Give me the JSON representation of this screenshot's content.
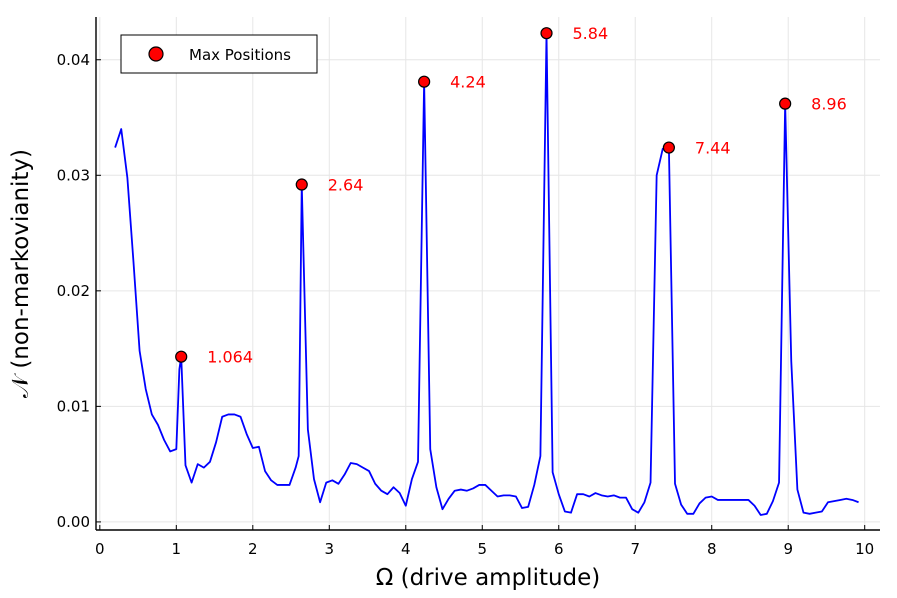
{
  "chart_data": {
    "type": "line",
    "title": "",
    "xlabel": "Ω (drive amplitude)",
    "ylabel": "𝒩 (non-markovianity)",
    "xlim": [
      -0.05,
      10.2
    ],
    "ylim": [
      -0.0007,
      0.0437
    ],
    "xticks": [
      0,
      1,
      2,
      3,
      4,
      5,
      6,
      7,
      8,
      9,
      10
    ],
    "xtick_labels": [
      "0",
      "1",
      "2",
      "3",
      "4",
      "5",
      "6",
      "7",
      "8",
      "9",
      "10"
    ],
    "yticks": [
      0,
      0.01,
      0.02,
      0.03,
      0.04
    ],
    "ytick_labels": [
      "0.00",
      "0.01",
      "0.02",
      "0.03",
      "0.04"
    ],
    "grid": true,
    "series": [
      {
        "name": "non-markovianity",
        "color": "#0000ff",
        "x": [
          0.2,
          0.28,
          0.36,
          0.44,
          0.52,
          0.6,
          0.68,
          0.76,
          0.84,
          0.92,
          1.0,
          1.04,
          1.064,
          1.12,
          1.2,
          1.28,
          1.36,
          1.44,
          1.52,
          1.6,
          1.68,
          1.76,
          1.84,
          1.92,
          2.0,
          2.08,
          2.16,
          2.24,
          2.32,
          2.4,
          2.48,
          2.56,
          2.6,
          2.64,
          2.72,
          2.8,
          2.88,
          2.96,
          3.04,
          3.12,
          3.2,
          3.28,
          3.36,
          3.44,
          3.52,
          3.6,
          3.68,
          3.76,
          3.84,
          3.92,
          4.0,
          4.08,
          4.16,
          4.24,
          4.32,
          4.4,
          4.48,
          4.56,
          4.64,
          4.72,
          4.8,
          4.88,
          4.96,
          5.04,
          5.12,
          5.2,
          5.28,
          5.36,
          5.44,
          5.52,
          5.6,
          5.68,
          5.76,
          5.84,
          5.92,
          6.0,
          6.08,
          6.16,
          6.24,
          6.32,
          6.4,
          6.48,
          6.56,
          6.64,
          6.72,
          6.8,
          6.88,
          6.96,
          7.04,
          7.12,
          7.2,
          7.28,
          7.36,
          7.44,
          7.52,
          7.6,
          7.68,
          7.76,
          7.84,
          7.92,
          8.0,
          8.08,
          8.16,
          8.24,
          8.32,
          8.4,
          8.48,
          8.56,
          8.64,
          8.72,
          8.8,
          8.88,
          8.96,
          9.04,
          9.12,
          9.2,
          9.28,
          9.36,
          9.44,
          9.52,
          9.6,
          9.68,
          9.76,
          9.84,
          9.92
        ],
        "values": [
          0.0324,
          0.034,
          0.0298,
          0.0225,
          0.0148,
          0.0115,
          0.0093,
          0.0084,
          0.0071,
          0.0061,
          0.0063,
          0.0132,
          0.0143,
          0.0049,
          0.0034,
          0.005,
          0.0047,
          0.0052,
          0.0069,
          0.0091,
          0.0093,
          0.0093,
          0.0091,
          0.0076,
          0.0064,
          0.0065,
          0.0044,
          0.0036,
          0.0032,
          0.0032,
          0.0032,
          0.0047,
          0.0057,
          0.0292,
          0.008,
          0.0037,
          0.0017,
          0.0034,
          0.0036,
          0.0033,
          0.0041,
          0.0051,
          0.005,
          0.0047,
          0.0044,
          0.0033,
          0.0027,
          0.0024,
          0.003,
          0.0025,
          0.0014,
          0.0037,
          0.0052,
          0.0381,
          0.0063,
          0.003,
          0.0011,
          0.002,
          0.0027,
          0.0028,
          0.0027,
          0.0029,
          0.0032,
          0.0032,
          0.0027,
          0.0022,
          0.0023,
          0.0023,
          0.0022,
          0.0012,
          0.0013,
          0.0032,
          0.0057,
          0.0423,
          0.0043,
          0.0024,
          0.0009,
          0.0008,
          0.0024,
          0.0024,
          0.0022,
          0.0025,
          0.0023,
          0.0022,
          0.0023,
          0.0021,
          0.0021,
          0.0011,
          0.0008,
          0.0017,
          0.0034,
          0.03,
          0.0323,
          0.0324,
          0.0033,
          0.0015,
          0.0007,
          0.0007,
          0.0016,
          0.0021,
          0.0022,
          0.0019,
          0.0019,
          0.0019,
          0.0019,
          0.0019,
          0.0019,
          0.0014,
          0.0006,
          0.0007,
          0.0018,
          0.0034,
          0.0362,
          0.0139,
          0.0028,
          0.0008,
          0.0007,
          0.0008,
          0.0009,
          0.0017,
          0.0018,
          0.0019,
          0.002,
          0.0019,
          0.0017
        ]
      }
    ],
    "max_positions": {
      "name": "Max Positions",
      "color": "#ff0000",
      "points": [
        {
          "x": 1.064,
          "y": 0.0143,
          "label": "1.064"
        },
        {
          "x": 2.64,
          "y": 0.0292,
          "label": "2.64"
        },
        {
          "x": 4.24,
          "y": 0.0381,
          "label": "4.24"
        },
        {
          "x": 5.84,
          "y": 0.0423,
          "label": "5.84"
        },
        {
          "x": 7.44,
          "y": 0.0324,
          "label": "7.44"
        },
        {
          "x": 8.96,
          "y": 0.0362,
          "label": "8.96"
        }
      ]
    },
    "legend": {
      "position": "top-left",
      "entries": [
        "Max Positions"
      ]
    }
  }
}
